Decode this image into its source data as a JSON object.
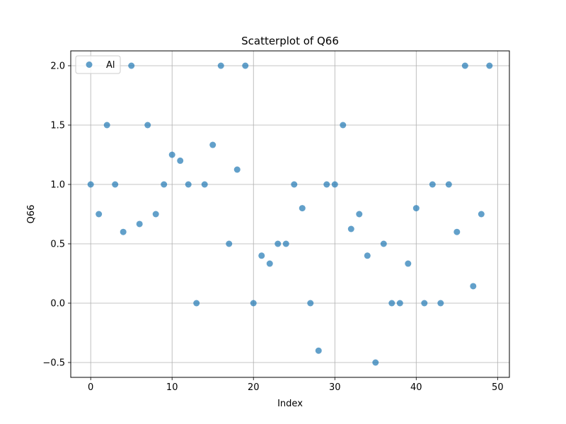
{
  "chart_data": {
    "type": "scatter",
    "title": "Scatterplot of Q66",
    "xlabel": "Index",
    "ylabel": "Q66",
    "xlim": [
      -2.45,
      51.45
    ],
    "ylim": [
      -0.625,
      2.125
    ],
    "xticks": [
      0,
      10,
      20,
      30,
      40,
      50
    ],
    "xtick_labels": [
      "0",
      "10",
      "20",
      "30",
      "40",
      "50"
    ],
    "yticks": [
      -0.5,
      0.0,
      0.5,
      1.0,
      1.5,
      2.0
    ],
    "ytick_labels": [
      "−0.5",
      "0.0",
      "0.5",
      "1.0",
      "1.5",
      "2.0"
    ],
    "grid": true,
    "legend_position": "top-left",
    "series": [
      {
        "name": "Al",
        "color": "#1f77b4",
        "x": [
          0,
          1,
          2,
          3,
          4,
          5,
          6,
          7,
          8,
          9,
          10,
          11,
          12,
          13,
          14,
          15,
          16,
          17,
          18,
          19,
          20,
          21,
          22,
          23,
          24,
          25,
          26,
          27,
          28,
          29,
          30,
          31,
          32,
          33,
          34,
          35,
          36,
          37,
          38,
          39,
          40,
          41,
          42,
          43,
          44,
          45,
          46,
          47,
          48,
          49
        ],
        "y": [
          1.0,
          0.75,
          1.5,
          1.0,
          0.6,
          2.0,
          0.667,
          1.5,
          0.75,
          1.0,
          1.25,
          1.2,
          1.0,
          0.0,
          1.0,
          1.333,
          2.0,
          0.5,
          1.125,
          2.0,
          0.0,
          0.4,
          0.333,
          0.5,
          0.5,
          1.0,
          0.8,
          0.0,
          -0.4,
          1.0,
          1.0,
          1.5,
          0.625,
          0.75,
          0.4,
          -0.5,
          0.5,
          0.0,
          0.0,
          0.333,
          0.8,
          0.0,
          1.0,
          0.0,
          1.0,
          0.6,
          2.0,
          0.143,
          0.75,
          2.0
        ]
      }
    ]
  }
}
